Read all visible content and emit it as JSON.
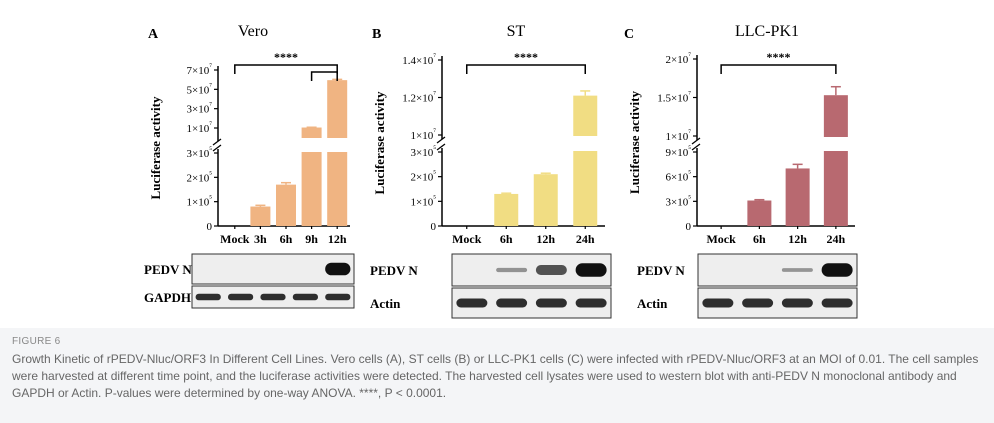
{
  "figure": {
    "label": "FIGURE 6",
    "caption": "Growth Kinetic of rPEDV-Nluc/ORF3 In Different Cell Lines. Vero cells (A), ST cells (B) or LLC-PK1 cells (C) were infected with rPEDV-Nluc/ORF3 at an MOI of 0.01. The cell samples were harvested at different time point, and the luciferase activities were detected. The harvested cell lysates were used to western blot with anti-PEDV N monoclonal antibody and GAPDH or Actin. P-values were determined by one-way ANOVA. ****, P < 0.0001.",
    "colors": {
      "vero": "#f0b482",
      "st": "#f1dd83",
      "llc": "#b86970",
      "blot_bg": "#eeeeee",
      "band": "#111111"
    }
  },
  "chart_data": [
    {
      "type": "bar",
      "panel": "A",
      "title": "Vero",
      "ylabel": "Luciferase activity",
      "categories": [
        "Mock",
        "3h",
        "6h",
        "9h",
        "12h"
      ],
      "values": [
        0,
        80000,
        170000,
        10500000,
        59500000
      ],
      "errors": [
        0,
        5000,
        8000,
        300000,
        800000
      ],
      "broken_axis": {
        "lower_max": 300000,
        "upper_min": 700000,
        "upper_max": 70000000
      },
      "lower_ticks": [
        "0",
        "1×10⁵",
        "2×10⁵",
        "3×10⁵"
      ],
      "upper_ticks": [
        "1×10⁷",
        "3×10⁷",
        "5×10⁷",
        "7×10⁷"
      ],
      "significance": {
        "label": "****",
        "pairs": [
          [
            "Mock",
            "12h"
          ],
          [
            "9h",
            "12h"
          ]
        ]
      },
      "blots": [
        {
          "label": "PEDV N",
          "intensities": [
            0,
            0,
            0,
            0,
            1
          ]
        },
        {
          "label": "GAPDH",
          "intensities": [
            0.8,
            0.8,
            0.8,
            0.8,
            0.8
          ]
        }
      ]
    },
    {
      "type": "bar",
      "panel": "B",
      "title": "ST",
      "ylabel": "Luciferase activity",
      "categories": [
        "Mock",
        "6h",
        "12h",
        "24h"
      ],
      "values": [
        0,
        130000,
        210000,
        12100000
      ],
      "errors": [
        0,
        3000,
        4000,
        250000
      ],
      "broken_axis": {
        "lower_max": 300000,
        "upper_min": 10000000,
        "upper_max": 14000000
      },
      "lower_ticks": [
        "0",
        "1×10⁵",
        "2×10⁵",
        "3×10⁵"
      ],
      "upper_ticks": [
        "1×10⁷",
        "1.2×10⁷",
        "1.4×10⁷"
      ],
      "significance": {
        "label": "****",
        "pairs": [
          [
            "Mock",
            "24h"
          ]
        ]
      },
      "blots": [
        {
          "label": "PEDV N",
          "intensities": [
            0,
            0.1,
            0.55,
            1
          ]
        },
        {
          "label": "Actin",
          "intensities": [
            0.8,
            0.8,
            0.8,
            0.8
          ]
        }
      ]
    },
    {
      "type": "bar",
      "panel": "C",
      "title": "LLC-PK1",
      "ylabel": "Luciferase activity",
      "categories": [
        "Mock",
        "6h",
        "12h",
        "24h"
      ],
      "values": [
        0,
        310000,
        700000,
        15300000
      ],
      "errors": [
        0,
        10000,
        50000,
        1100000
      ],
      "broken_axis": {
        "lower_max": 900000,
        "upper_min": 10000000,
        "upper_max": 20000000
      },
      "lower_ticks": [
        "0",
        "3×10⁵",
        "6×10⁵",
        "9×10⁵"
      ],
      "upper_ticks": [
        "1×10⁷",
        "1.5×10⁷",
        "2×10⁷"
      ],
      "significance": {
        "label": "****",
        "pairs": [
          [
            "Mock",
            "24h"
          ]
        ]
      },
      "blots": [
        {
          "label": "PEDV N",
          "intensities": [
            0,
            0,
            0.08,
            1
          ]
        },
        {
          "label": "Actin",
          "intensities": [
            0.8,
            0.8,
            0.8,
            0.8
          ]
        }
      ]
    }
  ]
}
